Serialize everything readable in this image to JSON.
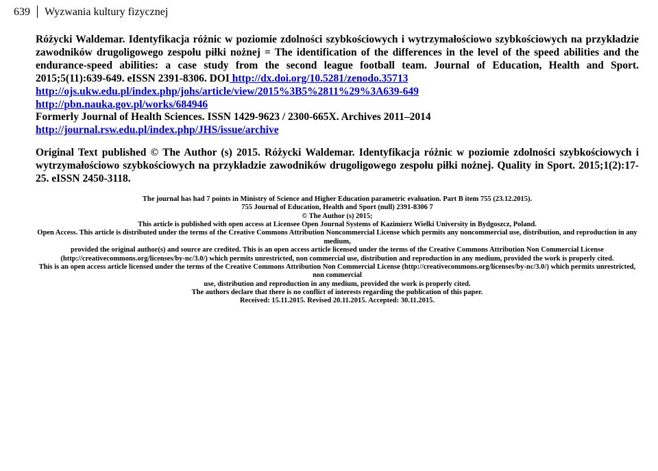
{
  "header": {
    "page_number": "639",
    "running_title": "Wyzwania kultury fizycznej"
  },
  "lead": {
    "t1": "Różycki Waldemar. Identyfikacja różnic w poziomie zdolności szybkościowych i wytrzymałościowo szybkościowych na przykładzie zawodników drugoligowego zespołu piłki nożnej = The identification of the differences in the level of the speed abilities and the endurance-speed abilities: a case study from the second league football team. Journal of Education, Health and Sport. 2015;5(11):639-649. eISSN 2391-8306. DOI",
    "l1": " http://dx.doi.org/10.5281/zenodo.35713",
    "l2": "http://ojs.ukw.edu.pl/index.php/johs/article/view/2015%3B5%2811%29%3A639-649",
    "l3": "http://pbn.nauka.gov.pl/works/684946",
    "t2": "Formerly Journal of Health Sciences. ISSN 1429-9623 / 2300-665X. Archives 2011–2014 ",
    "l4": "http://journal.rsw.edu.pl/index.php/JHS/issue/archive"
  },
  "orig": {
    "text": "Original Text published © The Author (s) 2015. Różycki Waldemar. Identyfikacja różnic w poziomie zdolności szybkościowych i wytrzymałościowo szybkościowych na przykładzie zawodników drugoligowego zespołu piłki nożnej. Quality in Sport. 2015;1(2):17-25. eISSN 2450-3118."
  },
  "fine": {
    "p1": "The journal has had 7 points in Ministry of Science and Higher Education parametric evaluation. Part B item 755 (23.12.2015).",
    "p2": "755 Journal of Education, Health and Sport (null) 2391-8306 7",
    "p3": "© The Author (s) 2015;",
    "p4": "This article is published with open access at Licensee Open Journal Systems of Kazimierz Wielki University in Bydgoszcz, Poland.",
    "p5": "Open Access. This article is distributed under the terms of the Creative Commons Attribution Noncommercial License which permits any noncommercial use, distribution, and reproduction in any medium,",
    "p6": "provided the original author(s) and source are credited. This is an open access article licensed under the terms of the Creative Commons Attribution Non Commercial License",
    "p7": "(http://creativecommons.org/licenses/by-nc/3.0/) which permits unrestricted, non commercial use, distribution and reproduction in any medium, provided the work is properly cited.",
    "p8": "This is an open access article licensed under the terms of the Creative Commons Attribution Non Commercial License (http://creativecommons.org/licenses/by-nc/3.0/) which permits unrestricted, non commercial",
    "p9": "use, distribution and reproduction in any medium, provided the work is properly cited.",
    "p10": "The authors declare that there is no conflict of interests regarding the publication of this paper.",
    "p11": "Received: 15.11.2015. Revised 20.11.2015. Accepted: 30.11.2015."
  }
}
